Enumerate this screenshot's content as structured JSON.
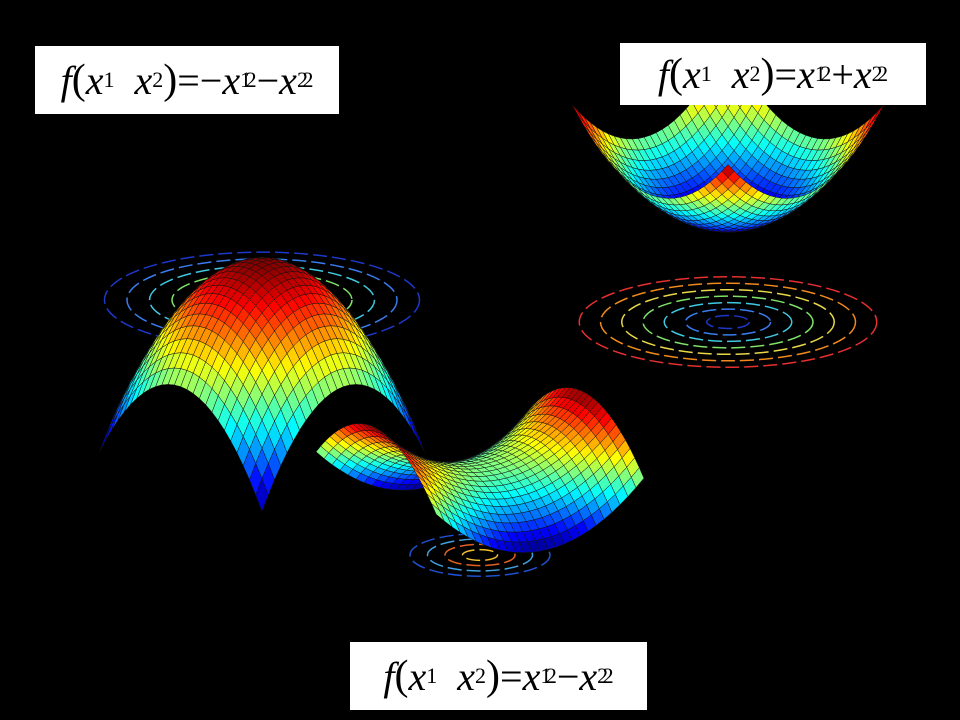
{
  "formulas": {
    "maximum": {
      "func": "f",
      "arg1": "x",
      "arg1_sub": "1",
      "arg2": "x",
      "arg2_sub": "2",
      "rhs": [
        {
          "op": "=−",
          "var": "x",
          "sub": "1",
          "sup": "2"
        },
        {
          "op": "−",
          "var": "x",
          "sub": "2",
          "sup": "2"
        }
      ]
    },
    "minimum": {
      "func": "f",
      "arg1": "x",
      "arg1_sub": "1",
      "arg2": "x",
      "arg2_sub": "2",
      "rhs": [
        {
          "op": "=",
          "var": "x",
          "sub": "1",
          "sup": "2"
        },
        {
          "op": "+",
          "var": "x",
          "sub": "2",
          "sup": "2"
        }
      ]
    },
    "saddle": {
      "func": "f",
      "arg1": "x",
      "arg1_sub": "1",
      "arg2": "x",
      "arg2_sub": "2",
      "rhs": [
        {
          "op": "=",
          "var": "x",
          "sub": "1",
          "sup": "2"
        },
        {
          "op": "−",
          "var": "x",
          "sub": "2",
          "sup": "2"
        }
      ]
    }
  },
  "surfaces": [
    {
      "name": "dome-surface",
      "kind": "maximum",
      "colormap": "jet"
    },
    {
      "name": "bowl-surface",
      "kind": "minimum",
      "colormap": "jet"
    },
    {
      "name": "saddle-surface",
      "kind": "saddle",
      "colormap": "jet"
    }
  ],
  "colors": {
    "background": "#000000",
    "box": "#ffffff"
  }
}
